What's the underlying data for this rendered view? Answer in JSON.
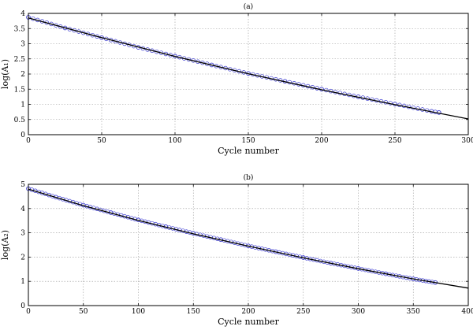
{
  "chart_data": [
    {
      "type": "line",
      "title": "(a)",
      "xlabel": "Cycle number",
      "ylabel": "log(A₁)",
      "xlim": [
        0,
        300
      ],
      "ylim": [
        0,
        4
      ],
      "xticks": [
        "0",
        "50",
        "100",
        "150",
        "200",
        "250",
        "300"
      ],
      "yticks": [
        "0",
        "0.5",
        "1",
        "1.5",
        "2",
        "2.5",
        "3",
        "3.5",
        "4"
      ],
      "grid": true,
      "series": [
        {
          "style": "markers",
          "color": "#3a3ad0",
          "x": [
            0,
            25,
            50,
            75,
            100,
            125,
            150,
            175,
            200,
            225,
            250,
            275,
            280
          ],
          "y": [
            3.87,
            3.52,
            3.2,
            2.88,
            2.59,
            2.3,
            2.02,
            1.76,
            1.5,
            1.25,
            1.01,
            0.77,
            0.73
          ]
        },
        {
          "style": "line",
          "color": "#000000",
          "x": [
            0,
            50,
            100,
            150,
            200,
            250,
            300
          ],
          "y": [
            3.85,
            3.2,
            2.58,
            2.01,
            1.48,
            0.99,
            0.52
          ]
        }
      ]
    },
    {
      "type": "line",
      "title": "(b)",
      "xlabel": "Cycle number",
      "ylabel": "log(A₂)",
      "xlim": [
        0,
        400
      ],
      "ylim": [
        0,
        5
      ],
      "xticks": [
        "0",
        "50",
        "100",
        "150",
        "200",
        "250",
        "300",
        "350",
        "400"
      ],
      "yticks": [
        "0",
        "1",
        "2",
        "3",
        "4",
        "5"
      ],
      "grid": true,
      "series": [
        {
          "style": "markers",
          "color": "#3a3ad0",
          "x": [
            0,
            25,
            50,
            75,
            100,
            125,
            150,
            175,
            200,
            225,
            250,
            275,
            300,
            325,
            350,
            370
          ],
          "y": [
            4.82,
            4.47,
            4.14,
            3.83,
            3.53,
            3.25,
            2.98,
            2.72,
            2.46,
            2.22,
            1.98,
            1.75,
            1.53,
            1.31,
            1.1,
            0.95
          ]
        },
        {
          "style": "line",
          "color": "#000000",
          "x": [
            0,
            50,
            100,
            150,
            200,
            250,
            300,
            350,
            400
          ],
          "y": [
            4.8,
            4.12,
            3.51,
            2.96,
            2.45,
            1.97,
            1.52,
            1.1,
            0.72
          ]
        }
      ]
    }
  ]
}
